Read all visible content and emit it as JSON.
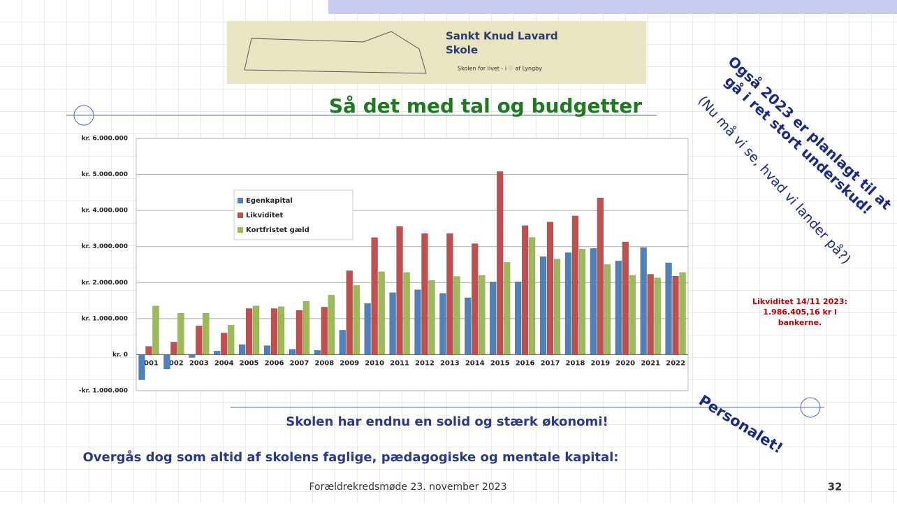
{
  "logo": {
    "name_line1": "Sankt Knud Lavard",
    "name_line2": "Skole",
    "motto": "Skolen for livet - i ♡ af Lyngby"
  },
  "title": "Så det med tal og budgetter",
  "deficit_note": [
    "Også 2023 er planlagt til at",
    "gå i ret stort underskud!"
  ],
  "deficit_aside": "(Nu må vi se, hvad vi lander på?)",
  "liquidity_note": [
    "Likviditet 14/11 2023:",
    "1.986.405,16 kr i",
    "bankerne."
  ],
  "statement": "Skolen har endnu en solid og stærk økonomi!",
  "surpassed": "Overgås dog som altid af skolens faglige, pædagogiske og mentale kapital:",
  "staff": "Personalet!",
  "footer": "Forældrekredsmøde 23. november 2023",
  "page_number": "32",
  "chart_data": {
    "type": "bar",
    "categories": [
      "2001",
      "2002",
      "2003",
      "2004",
      "2005",
      "2006",
      "2007",
      "2008",
      "2009",
      "2010",
      "2011",
      "2012",
      "2013",
      "2014",
      "2015",
      "2016",
      "2017",
      "2018",
      "2019",
      "2020",
      "2021",
      "2022"
    ],
    "series": [
      {
        "name": "Egenkapital",
        "color": "#4f81bd",
        "values": [
          -700000,
          -400000,
          -80000,
          100000,
          280000,
          250000,
          150000,
          120000,
          680000,
          1420000,
          1720000,
          1800000,
          1700000,
          1580000,
          2020000,
          2020000,
          2720000,
          2830000,
          2950000,
          2600000,
          2970000,
          2550000
        ]
      },
      {
        "name": "Likviditet",
        "color": "#c0504d",
        "values": [
          230000,
          350000,
          800000,
          600000,
          1280000,
          1280000,
          1230000,
          1320000,
          2330000,
          3250000,
          3560000,
          3360000,
          3360000,
          3080000,
          5080000,
          3580000,
          3680000,
          3850000,
          4350000,
          3130000,
          2230000,
          2180000
        ]
      },
      {
        "name": "Kortfristet gæld",
        "color": "#9bbb59",
        "values": [
          1350000,
          1150000,
          1150000,
          820000,
          1350000,
          1330000,
          1480000,
          1650000,
          1920000,
          2300000,
          2280000,
          2060000,
          2170000,
          2200000,
          2560000,
          3250000,
          2650000,
          2930000,
          2500000,
          2200000,
          2130000,
          2280000
        ]
      }
    ],
    "ylim": [
      -1000000,
      6000000
    ],
    "yticks": [
      {
        "value": -1000000,
        "label": "-kr. 1.000.000"
      },
      {
        "value": 0,
        "label": "kr. 0"
      },
      {
        "value": 1000000,
        "label": "kr. 1.000.000"
      },
      {
        "value": 2000000,
        "label": "kr. 2.000.000"
      },
      {
        "value": 3000000,
        "label": "kr. 3.000.000"
      },
      {
        "value": 4000000,
        "label": "kr. 4.000.000"
      },
      {
        "value": 5000000,
        "label": "kr. 5.000.000"
      },
      {
        "value": 6000000,
        "label": "kr. 6.000.000"
      }
    ],
    "grid": true
  }
}
